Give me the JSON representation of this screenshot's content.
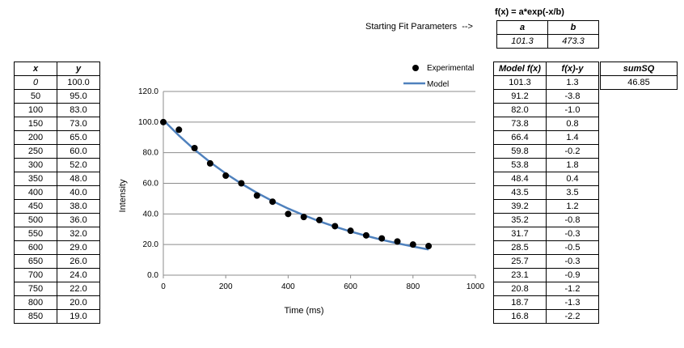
{
  "params": {
    "label": "Starting Fit Parameters  -->",
    "formula": "f(x) = a*exp(-x/b)",
    "headers": [
      "a",
      "b"
    ],
    "values": [
      "101.3",
      "473.3"
    ]
  },
  "xy_table": {
    "headers": [
      "x",
      "y"
    ],
    "rows": [
      [
        "0",
        "100.0"
      ],
      [
        "50",
        "95.0"
      ],
      [
        "100",
        "83.0"
      ],
      [
        "150",
        "73.0"
      ],
      [
        "200",
        "65.0"
      ],
      [
        "250",
        "60.0"
      ],
      [
        "300",
        "52.0"
      ],
      [
        "350",
        "48.0"
      ],
      [
        "400",
        "40.0"
      ],
      [
        "450",
        "38.0"
      ],
      [
        "500",
        "36.0"
      ],
      [
        "550",
        "32.0"
      ],
      [
        "600",
        "29.0"
      ],
      [
        "650",
        "26.0"
      ],
      [
        "700",
        "24.0"
      ],
      [
        "750",
        "22.0"
      ],
      [
        "800",
        "20.0"
      ],
      [
        "850",
        "19.0"
      ]
    ]
  },
  "model_table": {
    "headers": [
      "Model f(x)",
      "f(x)-y"
    ],
    "rows": [
      [
        "101.3",
        "1.3"
      ],
      [
        "91.2",
        "-3.8"
      ],
      [
        "82.0",
        "-1.0"
      ],
      [
        "73.8",
        "0.8"
      ],
      [
        "66.4",
        "1.4"
      ],
      [
        "59.8",
        "-0.2"
      ],
      [
        "53.8",
        "1.8"
      ],
      [
        "48.4",
        "0.4"
      ],
      [
        "43.5",
        "3.5"
      ],
      [
        "39.2",
        "1.2"
      ],
      [
        "35.2",
        "-0.8"
      ],
      [
        "31.7",
        "-0.3"
      ],
      [
        "28.5",
        "-0.5"
      ],
      [
        "25.7",
        "-0.3"
      ],
      [
        "23.1",
        "-0.9"
      ],
      [
        "20.8",
        "-1.2"
      ],
      [
        "18.7",
        "-1.3"
      ],
      [
        "16.8",
        "-2.2"
      ]
    ]
  },
  "sumsq": {
    "header": "sumSQ",
    "value": "46.85"
  },
  "chart_data": {
    "type": "scatter",
    "xlabel": "Time (ms)",
    "ylabel": "Intensity",
    "xlim": [
      0,
      1000
    ],
    "ylim": [
      0,
      120
    ],
    "xticks": [
      "0",
      "200",
      "400",
      "600",
      "800",
      "1000"
    ],
    "yticks": [
      "0.0",
      "20.0",
      "40.0",
      "60.0",
      "80.0",
      "100.0",
      "120.0"
    ],
    "grid": "horizontal",
    "legend_position": "top-right",
    "series": [
      {
        "name": "Experimental",
        "kind": "markers",
        "color": "#000000",
        "x": [
          0,
          50,
          100,
          150,
          200,
          250,
          300,
          350,
          400,
          450,
          500,
          550,
          600,
          650,
          700,
          750,
          800,
          850
        ],
        "y": [
          100,
          95,
          83,
          73,
          65,
          60,
          52,
          48,
          40,
          38,
          36,
          32,
          29,
          26,
          24,
          22,
          20,
          19
        ]
      },
      {
        "name": "Model",
        "kind": "line",
        "color": "#4f81bd",
        "x": [
          0,
          50,
          100,
          150,
          200,
          250,
          300,
          350,
          400,
          450,
          500,
          550,
          600,
          650,
          700,
          750,
          800,
          850
        ],
        "y": [
          101.3,
          91.2,
          82.0,
          73.8,
          66.4,
          59.8,
          53.8,
          48.4,
          43.5,
          39.2,
          35.2,
          31.7,
          28.5,
          25.7,
          23.1,
          20.8,
          18.7,
          16.8
        ]
      }
    ]
  }
}
